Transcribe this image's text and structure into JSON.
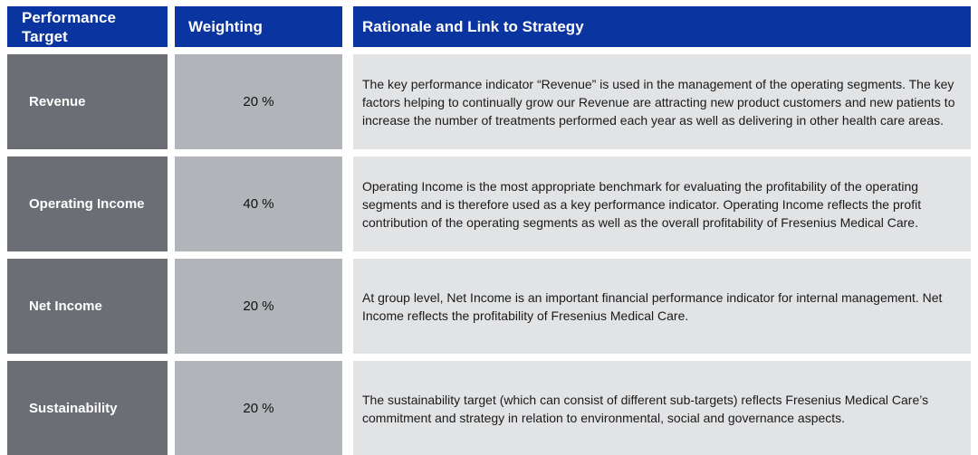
{
  "table": {
    "headers": {
      "performance_target": "Performance\nTarget",
      "weighting": "Weighting",
      "rationale": "Rationale and Link to Strategy"
    },
    "rows": [
      {
        "target": "Revenue",
        "weighting": "20 %",
        "rationale": "The key performance indicator “Revenue” is used in the management of the operating segments. The key factors helping to continually grow our Revenue are attracting new product customers and new patients to increase the number of treatments performed each year as well as delivering in other health care areas."
      },
      {
        "target": "Operating Income",
        "weighting": "40 %",
        "rationale": "Operating Income is the most appropriate benchmark for evaluating the profitability of the operating segments and is therefore used as a key performance indicator. Operating Income reflects the profit contribution of the operating segments as well as the overall profitability of Fresenius Medical Care."
      },
      {
        "target": "Net Income",
        "weighting": "20 %",
        "rationale": "At group level, Net Income is an important financial performance indicator for internal management. Net Income reflects the profitability of Fresenius Medical Care."
      },
      {
        "target": "Sustainability",
        "weighting": "20 %",
        "rationale": "The sustainability target (which can consist of different sub-targets) reflects Fresenius Medical Care’s commitment and strategy in relation to environmental, social and governance aspects."
      }
    ],
    "colors": {
      "header_bg": "#0a35a0",
      "target_cell_bg": "#6b6e74",
      "weighting_cell_bg": "#b1b4b8",
      "rationale_cell_bg": "#e2e3e5",
      "header_text": "#ffffff",
      "body_text": "#1a1a1a"
    }
  }
}
